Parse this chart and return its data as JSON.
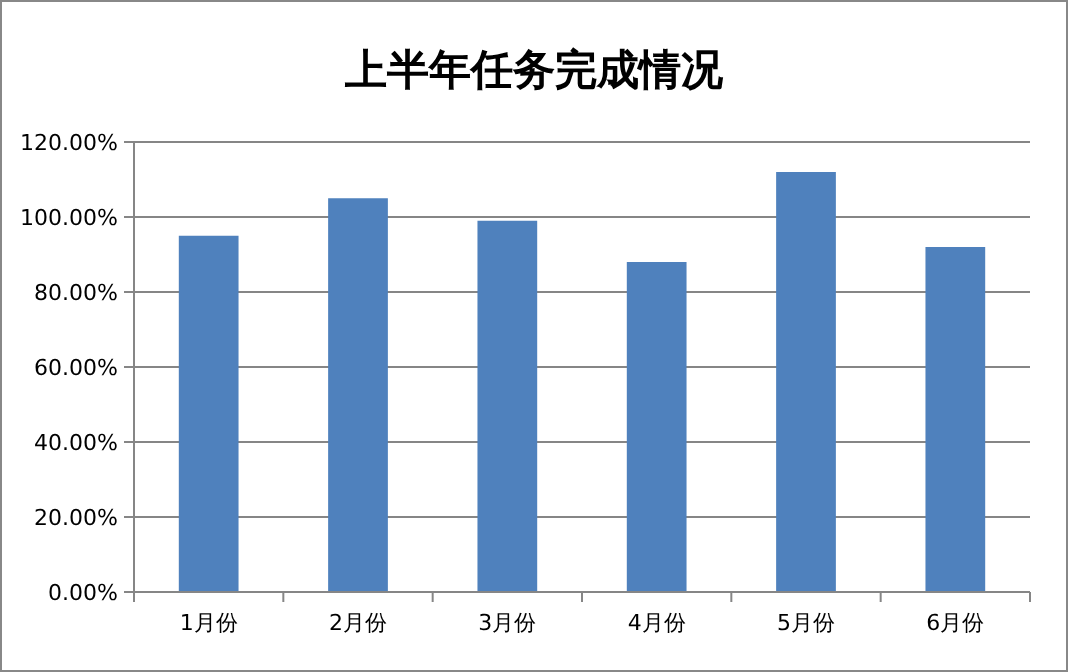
{
  "chart_data": {
    "type": "bar",
    "title": "上半年任务完成情况",
    "categories": [
      "1月份",
      "2月份",
      "3月份",
      "4月份",
      "5月份",
      "6月份"
    ],
    "values": [
      95,
      105,
      99,
      88,
      112,
      92
    ],
    "color": "#4f81bd",
    "ylim": [
      0,
      120
    ],
    "yticks": [
      {
        "value": 0,
        "label": "0.00%"
      },
      {
        "value": 20,
        "label": "20.00%"
      },
      {
        "value": 40,
        "label": "40.00%"
      },
      {
        "value": 60,
        "label": "60.00%"
      },
      {
        "value": 80,
        "label": "80.00%"
      },
      {
        "value": 100,
        "label": "100.00%"
      },
      {
        "value": 120,
        "label": "120.00%"
      }
    ],
    "grid": "y"
  }
}
